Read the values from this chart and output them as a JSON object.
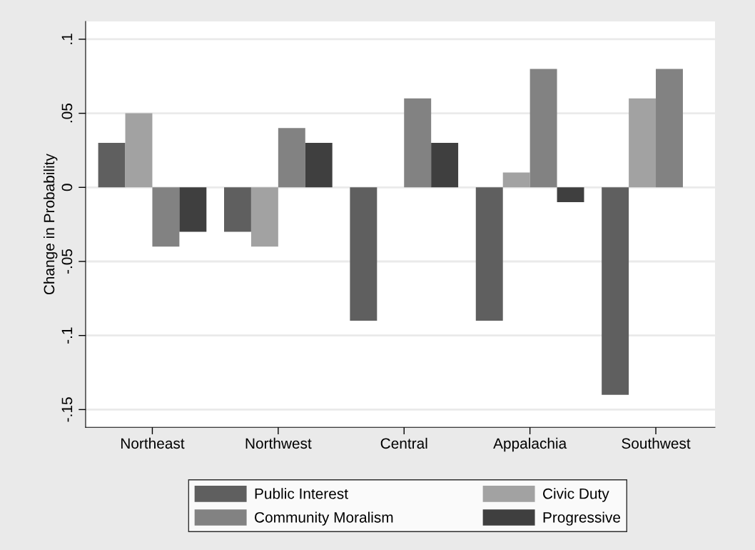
{
  "chart_data": {
    "type": "bar",
    "ylabel": "Change in Probability",
    "categories": [
      "Northeast",
      "Northwest",
      "Central",
      "Appalachia",
      "Southwest"
    ],
    "series": [
      {
        "name": "Public Interest",
        "color": "#5f5f5f",
        "values": [
          0.03,
          -0.03,
          -0.09,
          -0.09,
          -0.14
        ]
      },
      {
        "name": "Civic Duty",
        "color": "#a2a2a2",
        "values": [
          0.05,
          -0.04,
          null,
          0.01,
          0.06
        ]
      },
      {
        "name": "Community Moralism",
        "color": "#828282",
        "values": [
          -0.04,
          0.04,
          0.06,
          0.08,
          0.08
        ]
      },
      {
        "name": "Progressive",
        "color": "#3f3f3f",
        "values": [
          -0.03,
          0.03,
          0.03,
          -0.01,
          null
        ]
      }
    ],
    "ylim": [
      -0.162,
      0.112
    ],
    "yticks": [
      {
        "value": -0.15,
        "label": "-.15"
      },
      {
        "value": -0.1,
        "label": "-.1"
      },
      {
        "value": -0.05,
        "label": "-.05"
      },
      0,
      {
        "value": 0.05,
        "label": ".05"
      },
      {
        "value": 0.1,
        "label": ".1"
      }
    ],
    "grid": "y",
    "legend": "bottom"
  }
}
